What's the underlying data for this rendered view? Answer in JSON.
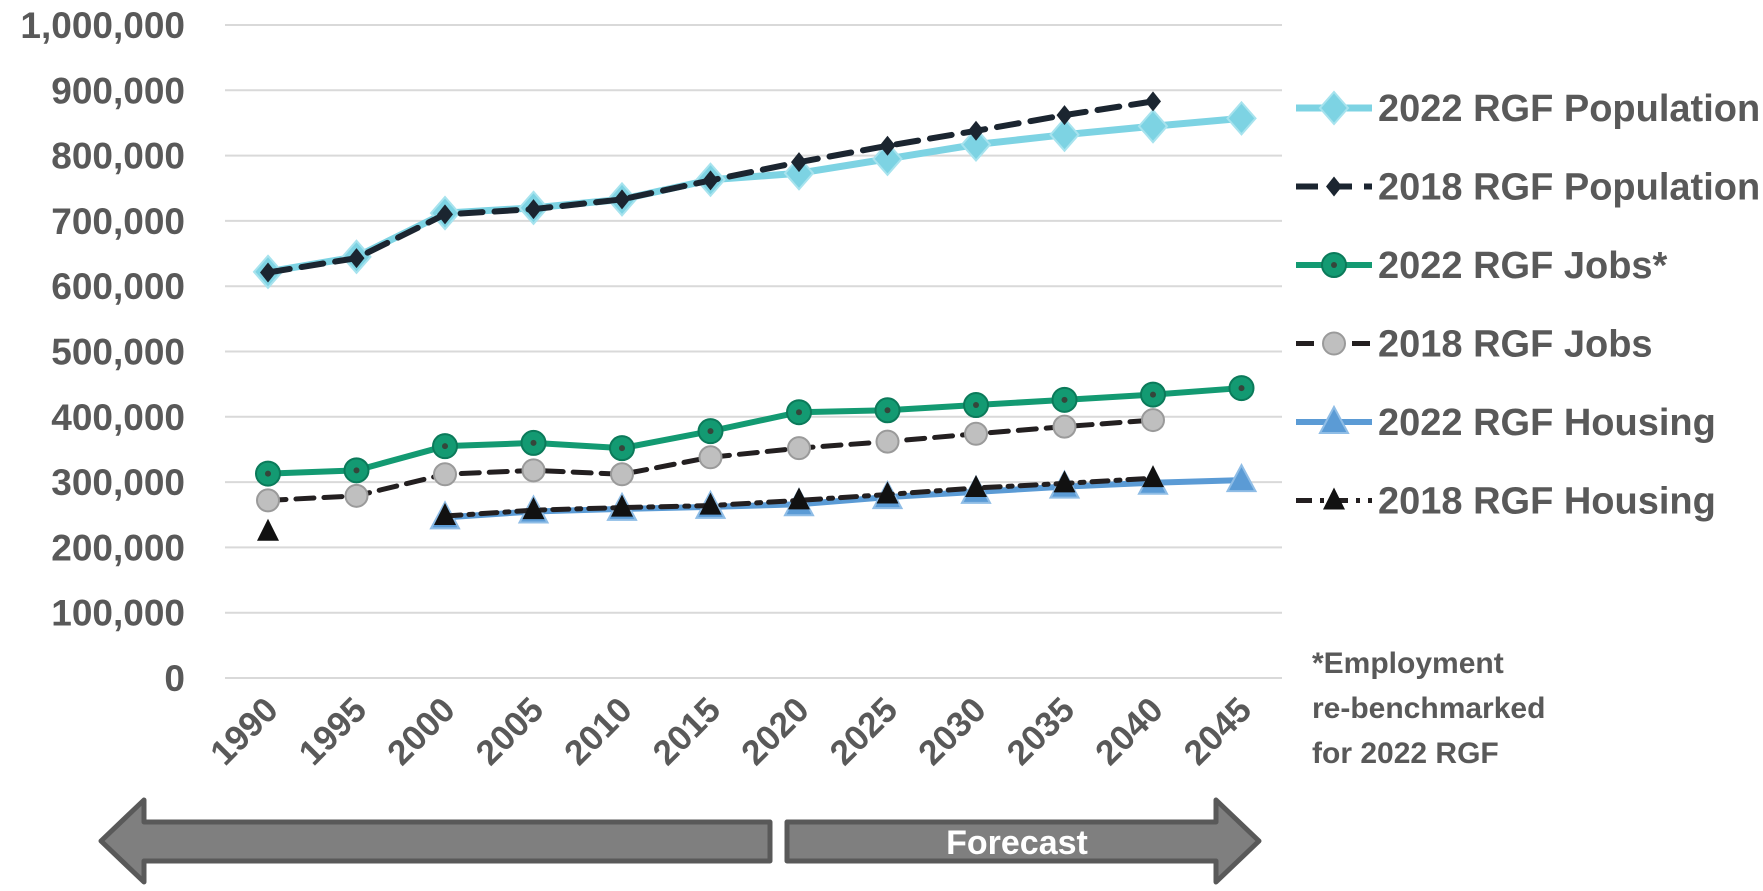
{
  "chart_data": {
    "type": "line",
    "title": "",
    "xlabel": "",
    "ylabel": "",
    "x": [
      1990,
      1995,
      2000,
      2005,
      2010,
      2015,
      2020,
      2025,
      2030,
      2035,
      2040,
      2045
    ],
    "x_tick_labels": [
      "1990",
      "1995",
      "2000",
      "2005",
      "2010",
      "2015",
      "2020",
      "2025",
      "2030",
      "2035",
      "2040",
      "2045"
    ],
    "ylim": [
      0,
      1000000
    ],
    "y_ticks": [
      0,
      100000,
      200000,
      300000,
      400000,
      500000,
      600000,
      700000,
      800000,
      900000,
      1000000
    ],
    "y_tick_labels": [
      "0",
      "100,000",
      "200,000",
      "300,000",
      "400,000",
      "500,000",
      "600,000",
      "700,000",
      "800,000",
      "900,000",
      "1,000,000"
    ],
    "grid": "horizontal",
    "legend_position": "right",
    "series": [
      {
        "name": "2022 RGF Population",
        "color": "#7dd3e3",
        "line": "solid",
        "marker": "diamond",
        "values": [
          622000,
          645000,
          712000,
          720000,
          733000,
          763000,
          773000,
          795000,
          817000,
          832000,
          845000,
          857000
        ]
      },
      {
        "name": "2018 RGF Population",
        "color": "#1b2530",
        "line": "dashed",
        "marker": "small-diamond",
        "values": [
          621000,
          643000,
          710000,
          718000,
          733000,
          762000,
          790000,
          815000,
          838000,
          862000,
          883000,
          null
        ]
      },
      {
        "name": "2022 RGF Jobs*",
        "color": "#139a72",
        "line": "solid",
        "marker": "circle",
        "values": [
          313000,
          318000,
          355000,
          360000,
          352000,
          378000,
          407000,
          410000,
          418000,
          426000,
          434000,
          444000
        ]
      },
      {
        "name": "2018 RGF Jobs",
        "color": "#231f20",
        "line": "dashed",
        "marker": "gray-circle",
        "values": [
          272000,
          279000,
          312000,
          318000,
          312000,
          338000,
          352000,
          362000,
          374000,
          385000,
          395000,
          null
        ]
      },
      {
        "name": "2022 RGF Housing",
        "color": "#5b9bd5",
        "line": "solid",
        "marker": "triangle",
        "values": [
          null,
          null,
          246000,
          255000,
          259000,
          262000,
          266000,
          277000,
          285000,
          293000,
          299000,
          303000
        ]
      },
      {
        "name": "2018 RGF Housing",
        "color": "#231f20",
        "line": "dash-dot",
        "marker": "black-triangle",
        "values": [
          224000,
          null,
          248000,
          257000,
          261000,
          264000,
          272000,
          281000,
          291000,
          298000,
          306000,
          null
        ]
      }
    ],
    "annotations": {
      "footnote": [
        "*Employment",
        "re-benchmarked",
        "for 2022 RGF"
      ],
      "forecast_label": "Forecast"
    }
  }
}
